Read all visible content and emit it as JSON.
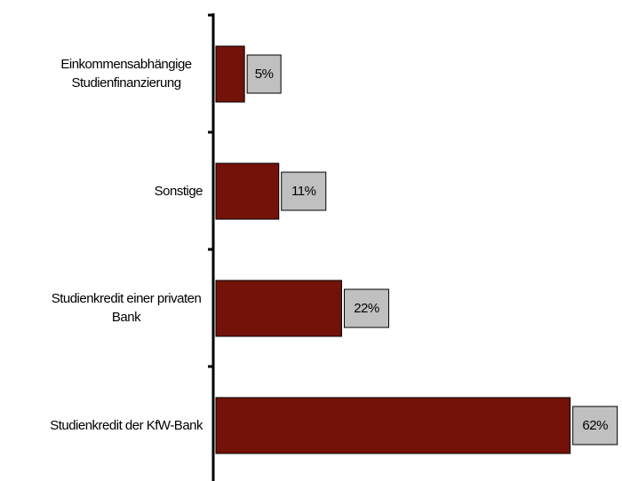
{
  "chart_data": {
    "type": "bar",
    "orientation": "horizontal",
    "categories": [
      "Einkommensabhängige Studienfinanzierung",
      "Sonstige",
      "Studienkredit einer privaten Bank",
      "Studienkredit der KfW-Bank"
    ],
    "values": [
      5,
      11,
      22,
      62
    ],
    "value_labels": [
      "5%",
      "11%",
      "22%",
      "62%"
    ],
    "color": "#731209",
    "label_box_color": "#c0c0c0"
  }
}
